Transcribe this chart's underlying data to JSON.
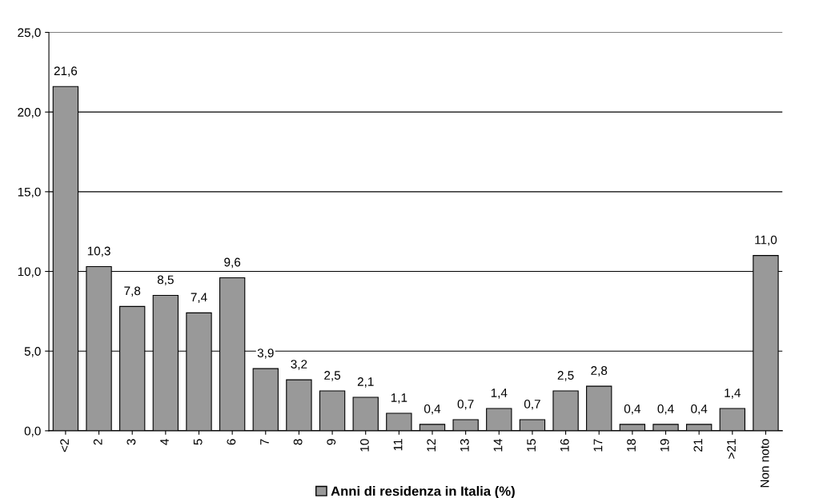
{
  "chart_data": {
    "type": "bar",
    "categories": [
      "<2",
      "2",
      "3",
      "4",
      "5",
      "6",
      "7",
      "8",
      "9",
      "10",
      "11",
      "12",
      "13",
      "14",
      "15",
      "16",
      "17",
      "18",
      "19",
      "21",
      ">21",
      "Non noto"
    ],
    "series": [
      {
        "name": "Anni di residenza in Italia (%)",
        "color": "#999999",
        "values": [
          21.6,
          10.3,
          7.8,
          8.5,
          7.4,
          9.6,
          3.9,
          3.2,
          2.5,
          2.1,
          1.1,
          0.4,
          0.7,
          1.4,
          0.7,
          2.5,
          2.8,
          0.4,
          0.4,
          0.4,
          1.4,
          11.0
        ],
        "value_labels": [
          "21,6",
          "10,3",
          "7,8",
          "8,5",
          "7,4",
          "9,6",
          "3,9",
          "3,2",
          "2,5",
          "2,1",
          "1,1",
          "0,4",
          "0,7",
          "1,4",
          "0,7",
          "2,5",
          "2,8",
          "0,4",
          "0,4",
          "0,4",
          "1,4",
          "11,0"
        ]
      }
    ],
    "ylim": [
      0,
      25
    ],
    "yticks": [
      {
        "value": 0,
        "label": "0,0"
      },
      {
        "value": 5,
        "label": "5,0"
      },
      {
        "value": 10,
        "label": "10,0"
      },
      {
        "value": 15,
        "label": "15,0"
      },
      {
        "value": 20,
        "label": "20,0"
      },
      {
        "value": 25,
        "label": "25,0"
      }
    ],
    "grid": "y",
    "legend": "bottom"
  }
}
